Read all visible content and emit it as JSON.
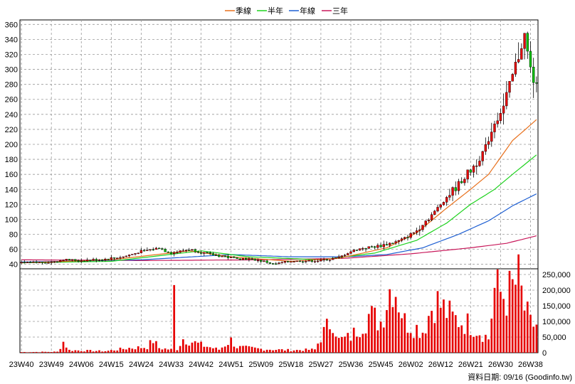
{
  "legend": {
    "items": [
      {
        "label": "季線",
        "color": "#e8701c"
      },
      {
        "label": "半年",
        "color": "#1ed21e"
      },
      {
        "label": "年線",
        "color": "#1e5fd2"
      },
      {
        "label": "三年",
        "color": "#c8185a"
      }
    ]
  },
  "footer": {
    "source": "資料日期: 09/16  (Goodinfo.tw)"
  },
  "colors": {
    "up": "#e60000",
    "down": "#00c000",
    "volume": "#e60000",
    "grid": "#999999"
  },
  "chart_data": {
    "type": "candlestick+volume",
    "price_axis": {
      "ticks": [
        40,
        60,
        80,
        100,
        120,
        140,
        160,
        180,
        200,
        220,
        240,
        260,
        280,
        300,
        320,
        340,
        360
      ],
      "range": [
        34,
        366
      ]
    },
    "volume_axis": {
      "ticks": [
        0,
        50000,
        100000,
        150000,
        200000,
        250000
      ],
      "tick_labels": [
        "0",
        "50,000",
        "100,000",
        "150,000",
        "200,000",
        "250,000"
      ],
      "range": [
        0,
        250000
      ]
    },
    "x_tick_labels": [
      "23W40",
      "23W49",
      "24W06",
      "24W15",
      "24W24",
      "24W33",
      "24W42",
      "24W51",
      "25W09",
      "25W18",
      "25W27",
      "25W36",
      "25W45",
      "26W02",
      "26W12",
      "26W21",
      "26W30",
      "26W38"
    ],
    "series_names": [
      "季線",
      "半年",
      "年線",
      "三年"
    ],
    "weeks": 157,
    "price_anchors": [
      [
        0,
        42
      ],
      [
        10,
        43
      ],
      [
        14,
        46
      ],
      [
        20,
        45
      ],
      [
        28,
        47
      ],
      [
        34,
        50
      ],
      [
        40,
        57
      ],
      [
        46,
        62
      ],
      [
        50,
        55
      ],
      [
        56,
        60
      ],
      [
        62,
        54
      ],
      [
        70,
        49
      ],
      [
        76,
        47
      ],
      [
        81,
        44
      ],
      [
        84,
        40
      ],
      [
        90,
        44
      ],
      [
        100,
        45
      ],
      [
        106,
        49
      ],
      [
        110,
        57
      ],
      [
        114,
        62
      ],
      [
        120,
        65
      ],
      [
        126,
        71
      ],
      [
        128,
        75
      ],
      [
        132,
        85
      ],
      [
        135,
        98
      ],
      [
        138,
        110
      ],
      [
        142,
        130
      ],
      [
        145,
        142
      ],
      [
        150,
        165
      ],
      [
        155,
        195
      ],
      [
        158,
        230
      ],
      [
        161,
        250
      ],
      [
        164,
        290
      ],
      [
        166,
        320
      ],
      [
        168,
        345
      ],
      [
        170,
        300
      ],
      [
        172,
        275
      ]
    ],
    "volume_anchors": [
      [
        0,
        2000
      ],
      [
        12,
        3000
      ],
      [
        14,
        35000
      ],
      [
        16,
        8000
      ],
      [
        28,
        5000
      ],
      [
        36,
        15000
      ],
      [
        42,
        18000
      ],
      [
        44,
        40000
      ],
      [
        46,
        15000
      ],
      [
        50,
        10000
      ],
      [
        51,
        190000
      ],
      [
        52,
        12000
      ],
      [
        54,
        45000
      ],
      [
        60,
        25000
      ],
      [
        66,
        10000
      ],
      [
        70,
        40000
      ],
      [
        72,
        18000
      ],
      [
        80,
        12000
      ],
      [
        90,
        8000
      ],
      [
        98,
        10000
      ],
      [
        100,
        50000
      ],
      [
        104,
        110000
      ],
      [
        106,
        40000
      ],
      [
        110,
        50000
      ],
      [
        116,
        120000
      ],
      [
        120,
        100000
      ],
      [
        124,
        240000
      ],
      [
        128,
        100000
      ],
      [
        134,
        70000
      ],
      [
        138,
        170000
      ],
      [
        144,
        110000
      ],
      [
        150,
        90000
      ],
      [
        154,
        60000
      ],
      [
        156,
        45000
      ],
      [
        158,
        200000
      ],
      [
        162,
        180000
      ],
      [
        166,
        230000
      ],
      [
        168,
        140000
      ],
      [
        170,
        90000
      ]
    ],
    "ma_quarter_anchors": [
      [
        0,
        42
      ],
      [
        30,
        46
      ],
      [
        56,
        58
      ],
      [
        70,
        50
      ],
      [
        90,
        44
      ],
      [
        106,
        48
      ],
      [
        122,
        62
      ],
      [
        132,
        82
      ],
      [
        142,
        115
      ],
      [
        150,
        140
      ],
      [
        156,
        160
      ],
      [
        164,
        205
      ],
      [
        172,
        233
      ]
    ],
    "ma_half_anchors": [
      [
        0,
        42
      ],
      [
        30,
        44
      ],
      [
        60,
        58
      ],
      [
        76,
        50
      ],
      [
        100,
        46
      ],
      [
        118,
        55
      ],
      [
        132,
        72
      ],
      [
        142,
        95
      ],
      [
        150,
        120
      ],
      [
        158,
        140
      ],
      [
        164,
        160
      ],
      [
        172,
        186
      ]
    ],
    "ma_year_anchors": [
      [
        0,
        43
      ],
      [
        40,
        46
      ],
      [
        70,
        53
      ],
      [
        90,
        50
      ],
      [
        108,
        50
      ],
      [
        122,
        53
      ],
      [
        134,
        62
      ],
      [
        146,
        80
      ],
      [
        156,
        98
      ],
      [
        164,
        118
      ],
      [
        172,
        134
      ]
    ],
    "ma_3yr_anchors": [
      [
        0,
        46
      ],
      [
        40,
        45
      ],
      [
        80,
        46
      ],
      [
        108,
        48
      ],
      [
        130,
        54
      ],
      [
        150,
        62
      ],
      [
        162,
        68
      ],
      [
        172,
        78
      ]
    ]
  }
}
